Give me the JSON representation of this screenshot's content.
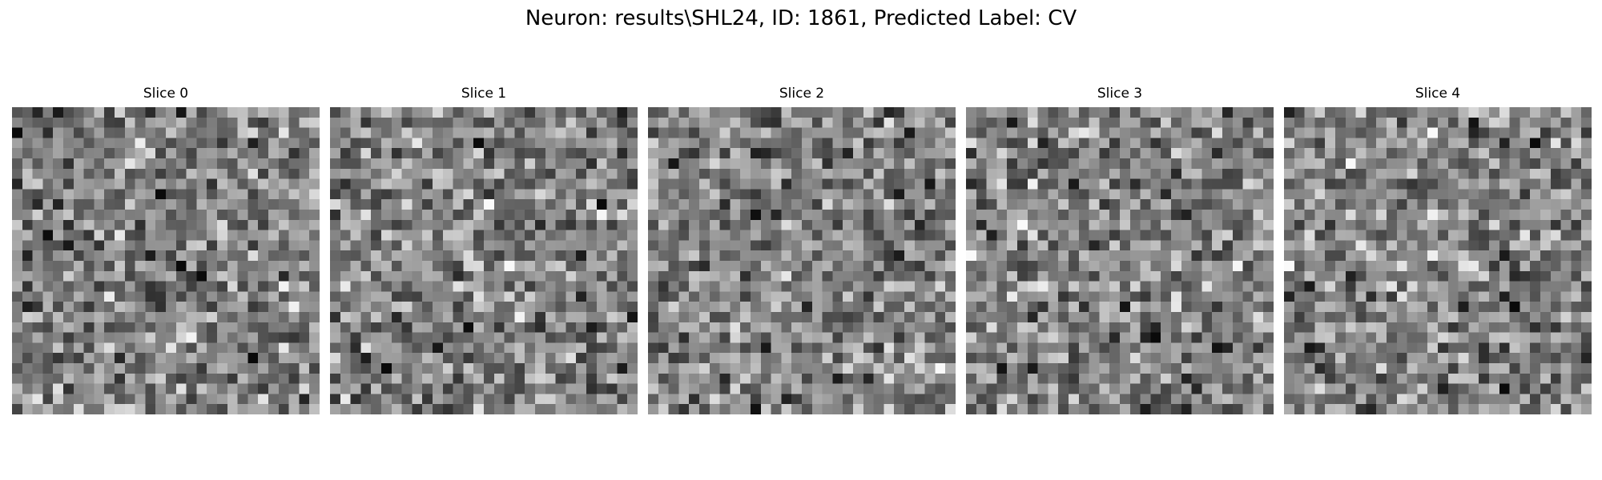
{
  "figure": {
    "title": "Neuron: results\\SHL24, ID: 1861, Predicted Label: CV",
    "colormap": "gray",
    "grid_size": 30,
    "panels": [
      {
        "title": "Slice 0",
        "seed": 1861
      },
      {
        "title": "Slice 1",
        "seed": 2861
      },
      {
        "title": "Slice 2",
        "seed": 3861
      },
      {
        "title": "Slice 3",
        "seed": 4861
      },
      {
        "title": "Slice 4",
        "seed": 5861
      }
    ]
  }
}
